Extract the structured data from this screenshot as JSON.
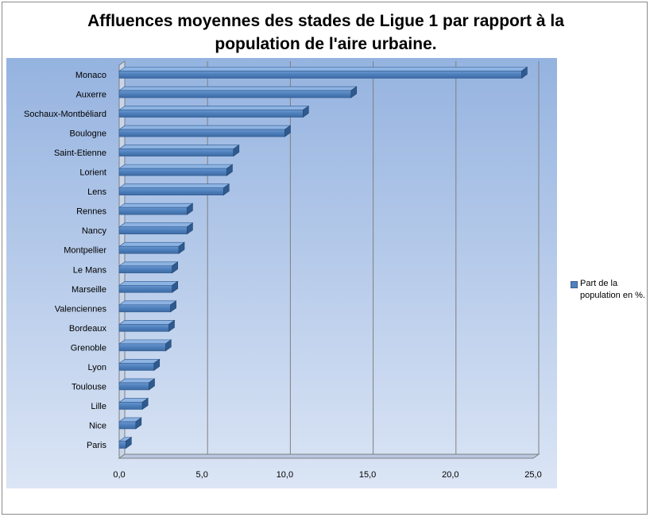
{
  "chart_data": {
    "type": "bar",
    "orientation": "horizontal",
    "title": "Affluences moyennes des stades de Ligue 1 par rapport à la population de l'aire urbaine.",
    "categories": [
      "Monaco",
      "Auxerre",
      "Sochaux-Montbéliard",
      "Boulogne",
      "Saint-Etienne",
      "Lorient",
      "Lens",
      "Rennes",
      "Nancy",
      "Montpellier",
      "Le Mans",
      "Marseille",
      "Valenciennes",
      "Bordeaux",
      "Grenoble",
      "Lyon",
      "Toulouse",
      "Lille",
      "Nice",
      "Paris"
    ],
    "series": [
      {
        "name": "Part de la population en %.",
        "values": [
          24.3,
          14.0,
          11.1,
          10.0,
          6.9,
          6.5,
          6.3,
          4.1,
          4.1,
          3.6,
          3.2,
          3.2,
          3.1,
          3.0,
          2.8,
          2.1,
          1.8,
          1.4,
          1.0,
          0.4
        ]
      }
    ],
    "xlim": [
      0,
      25
    ],
    "xticks": [
      "0,0",
      "5,0",
      "10,0",
      "15,0",
      "20,0",
      "25,0"
    ],
    "grid": true,
    "legend_position": "right",
    "colors": {
      "bar": "#4f81bd",
      "bar_top": "#8db3e2",
      "bar_side": "#2f5a8f",
      "plot_bg_top": "#95b3e0",
      "plot_bg_bottom": "#dbe5f5"
    }
  }
}
